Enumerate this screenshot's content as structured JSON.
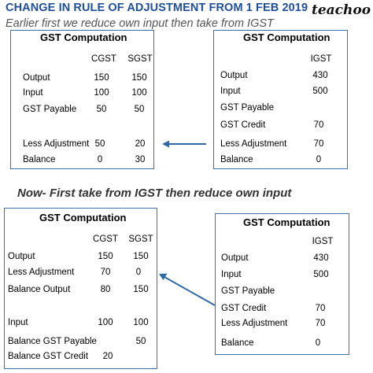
{
  "header": {
    "title": "CHANGE IN RULE OF ADJUSTMENT FROM 1 FEB 2019",
    "logo": "teachoo",
    "subtitle": "Earlier first we reduce own input then take from IGST"
  },
  "section2_title": "Now- First take from IGST then reduce own input",
  "colors": {
    "title": "#1f4e9c",
    "box_border": "#3f6fa8",
    "arrow": "#2e6aa8"
  },
  "earlier": {
    "left": {
      "heading": "GST Computation",
      "col1": "CGST",
      "col2": "SGST",
      "rows": [
        {
          "label": "Output",
          "c1": "150",
          "c2": "150"
        },
        {
          "label": "Input",
          "c1": "100",
          "c2": "100"
        },
        {
          "label": "GST Payable",
          "c1": "50",
          "c2": "50"
        },
        {
          "label": "Less Adjustment",
          "c1": "50",
          "c2": "20"
        },
        {
          "label": "Balance",
          "c1": "0",
          "c2": "30"
        }
      ]
    },
    "right": {
      "heading": "GST Computation",
      "col1": "IGST",
      "rows": [
        {
          "label": "Output",
          "v": "430"
        },
        {
          "label": "Input",
          "v": "500"
        },
        {
          "label": "GST Payable",
          "v": ""
        },
        {
          "label": "GST Credit",
          "v": "70"
        },
        {
          "label": "Less Adjustment",
          "v": "70"
        },
        {
          "label": "Balance",
          "v": "0"
        }
      ]
    }
  },
  "now": {
    "left": {
      "heading": "GST Computation",
      "col1": "CGST",
      "col2": "SGST",
      "rows": [
        {
          "label": "Output",
          "c1": "150",
          "c2": "150"
        },
        {
          "label": "Less Adjustment",
          "c1": "70",
          "c2": "0"
        },
        {
          "label": "Balance Output",
          "c1": "80",
          "c2": "150"
        },
        {
          "label": "Input",
          "c1": "100",
          "c2": "100"
        },
        {
          "label": "Balance GST Payable",
          "c1": "",
          "c2": "50"
        },
        {
          "label": "Balance GST Credit",
          "c1": "20",
          "c2": ""
        }
      ]
    },
    "right": {
      "heading": "GST Computation",
      "col1": "IGST",
      "rows": [
        {
          "label": "Output",
          "v": "430"
        },
        {
          "label": "Input",
          "v": "500"
        },
        {
          "label": "GST Payable",
          "v": ""
        },
        {
          "label": "GST Credit",
          "v": "70"
        },
        {
          "label": "Less Adjustment",
          "v": "70"
        },
        {
          "label": "Balance",
          "v": "0"
        }
      ]
    }
  }
}
